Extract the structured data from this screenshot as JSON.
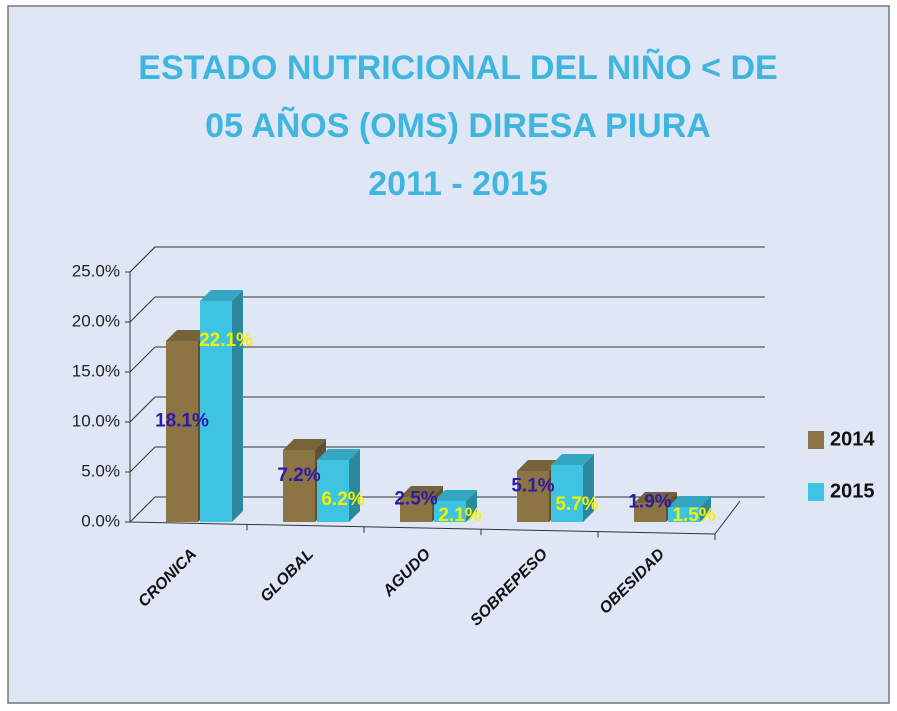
{
  "chart_data": {
    "type": "bar3d",
    "title": [
      "ESTADO NUTRICIONAL DEL NIÑO < DE",
      "05 AÑOS  (OMS) DIRESA PIURA",
      "2011 - 2015"
    ],
    "categories": [
      "CRONICA",
      "GLOBAL",
      "AGUDO",
      "SOBREPESO",
      "OBESIDAD"
    ],
    "series": [
      {
        "name": "2014",
        "color": "#8c7444",
        "label_color": "#2b1ba6",
        "values": [
          18.1,
          7.2,
          2.5,
          5.1,
          1.9
        ],
        "value_labels": [
          "18.1%",
          "7.2%",
          "2.5%",
          "5.1%",
          "1.9%"
        ]
      },
      {
        "name": "2015",
        "color": "#3ec3e3",
        "label_color": "#f2f200",
        "values": [
          22.1,
          6.2,
          2.1,
          5.7,
          1.5
        ],
        "value_labels": [
          "22.1%",
          "6.2%",
          "2.1%",
          "5.7%",
          "1.5%"
        ]
      }
    ],
    "ylim": [
      0,
      25
    ],
    "yticks": [
      {
        "value": 0,
        "label": "0.0%"
      },
      {
        "value": 5,
        "label": "5.0%"
      },
      {
        "value": 10,
        "label": "10.0%"
      },
      {
        "value": 15,
        "label": "15.0%"
      },
      {
        "value": 20,
        "label": "20.0%"
      },
      {
        "value": 25,
        "label": "25.0%"
      }
    ],
    "grid": true,
    "legend": "right"
  }
}
